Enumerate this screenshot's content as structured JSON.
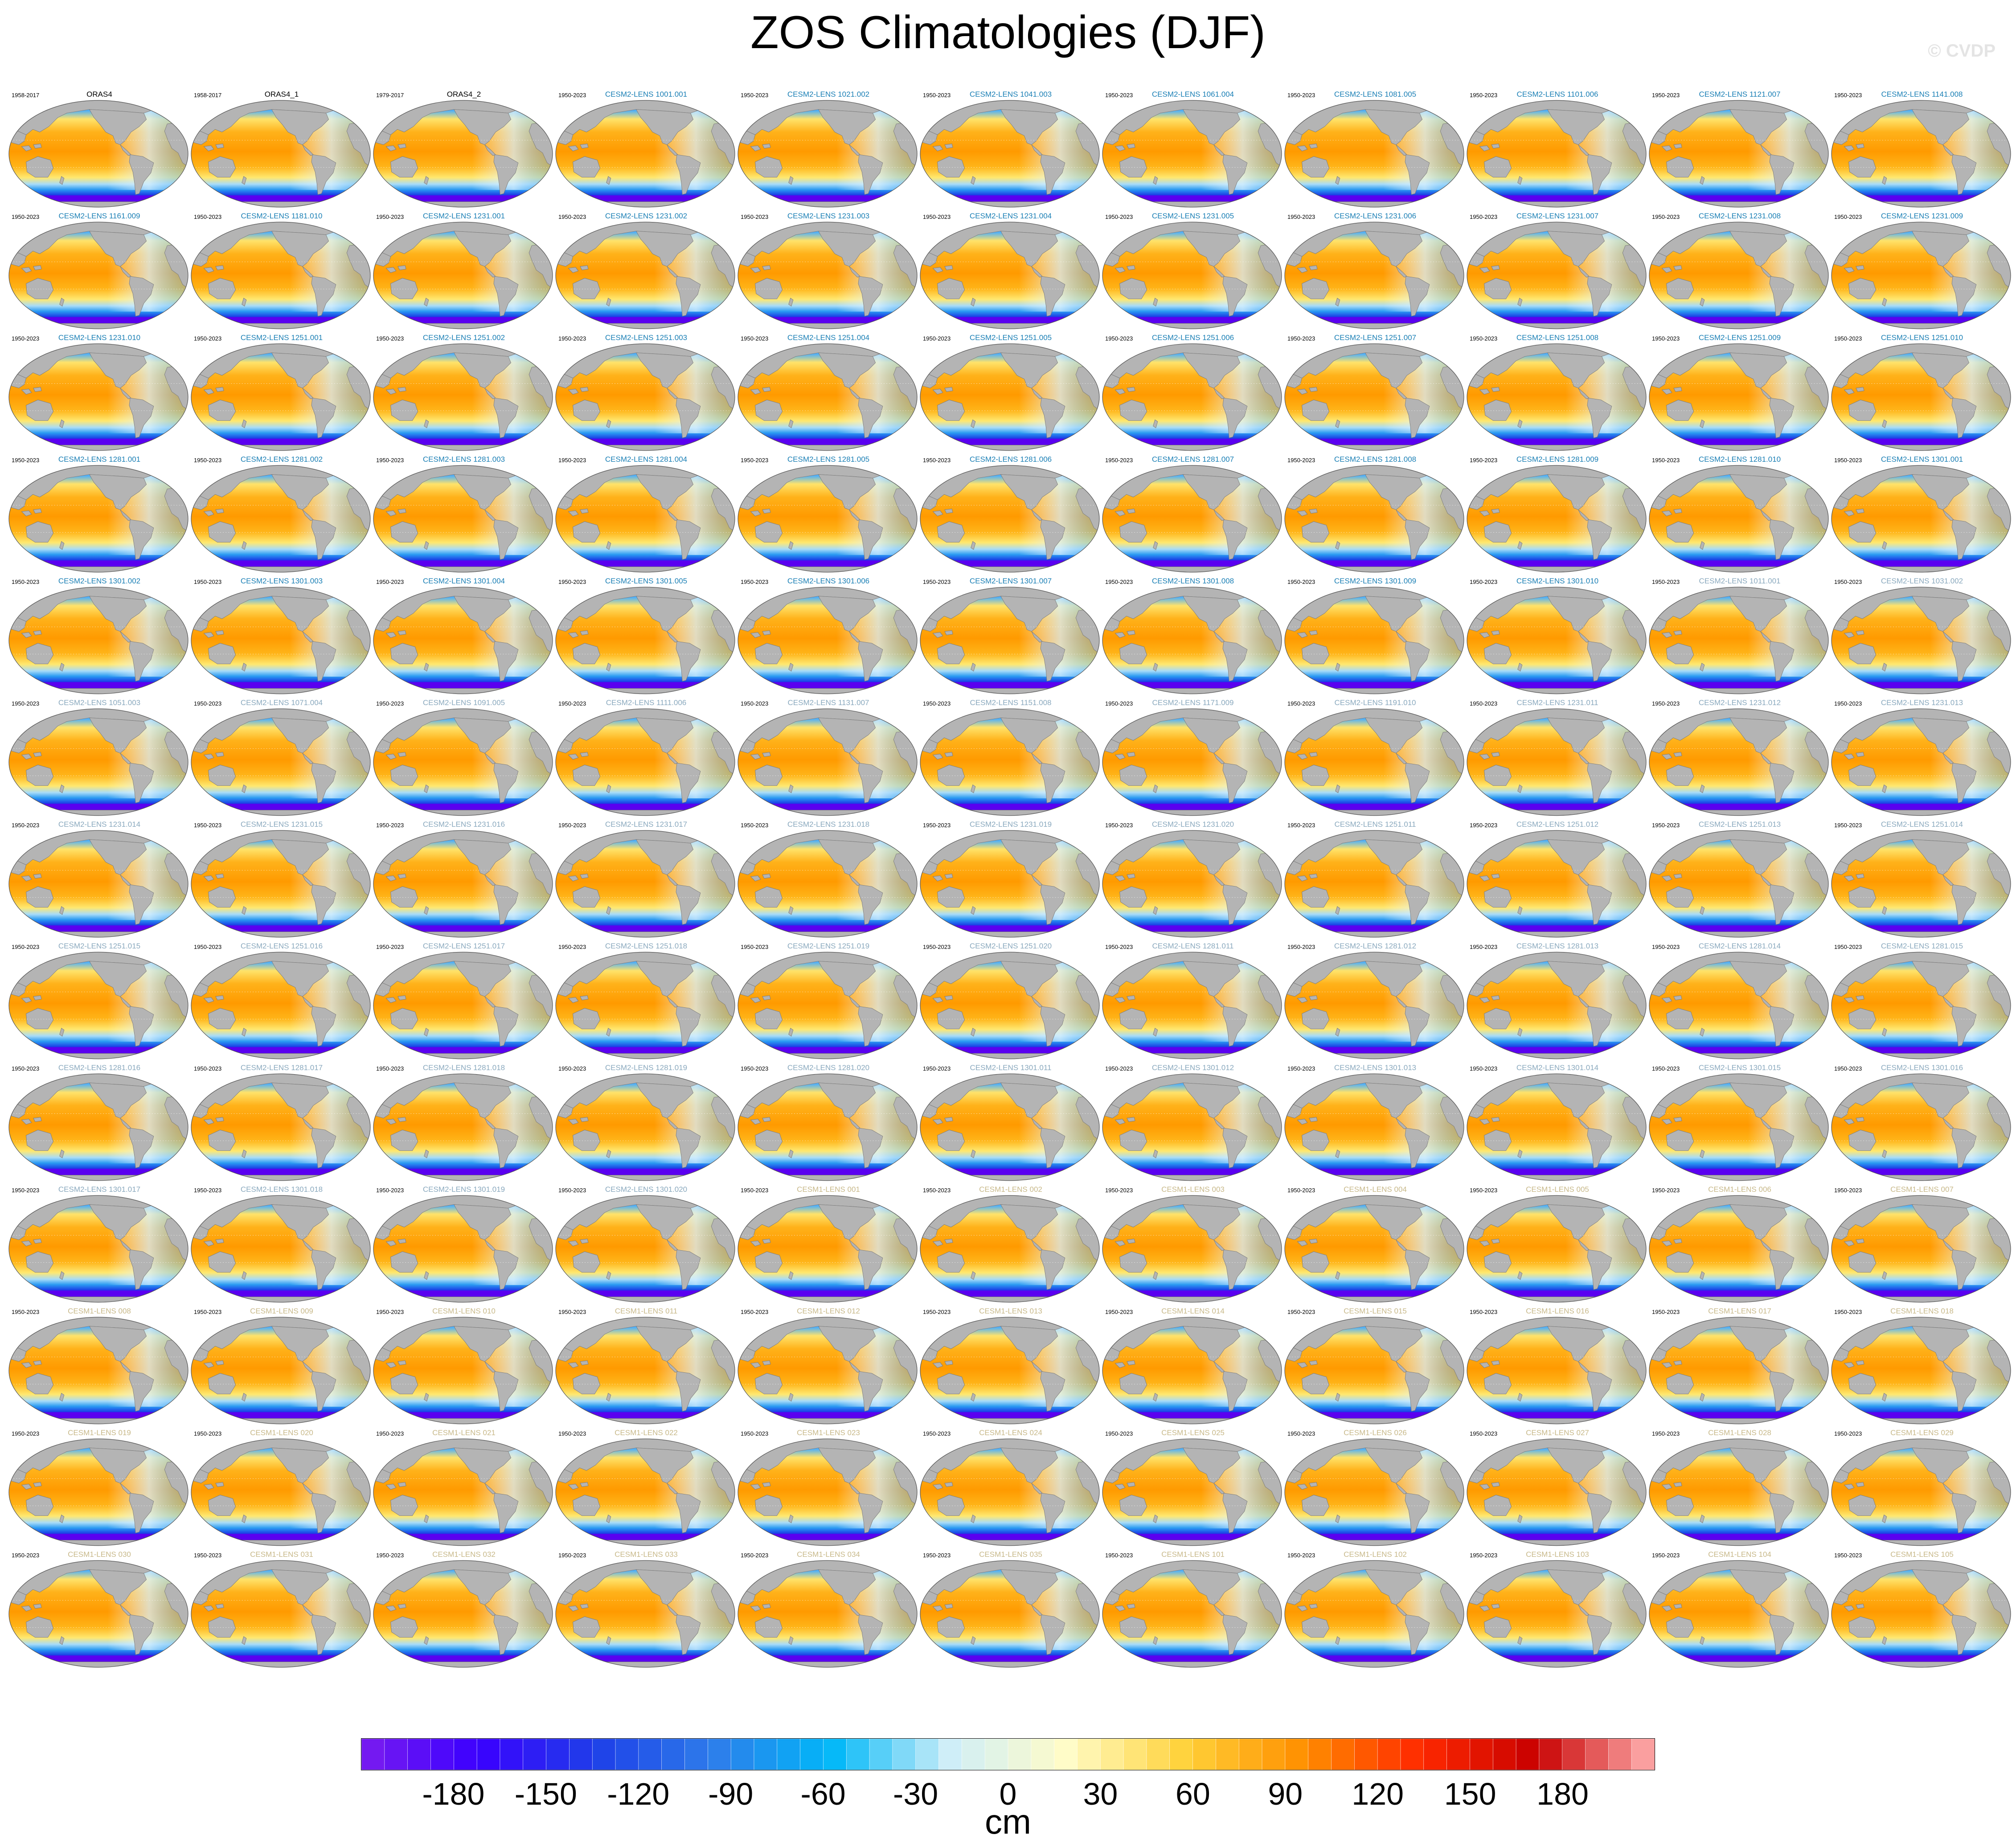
{
  "title": "ZOS Climatologies (DJF)",
  "watermark": "© CVDP",
  "grid": {
    "columns": 11,
    "rows": 13
  },
  "title_colors": {
    "obs": "#000000",
    "cesm2_a": "#1a7fb5",
    "cesm2_b": "#8aa9be",
    "cesm1": "#c8b98a"
  },
  "map_colors": {
    "land": "#b4b4b4",
    "ocean_warm": "#ffa500",
    "ocean_cool": "#4aaefc",
    "southern_ocean": "#5a00f0"
  },
  "panels": [
    {
      "years": "1958-2017",
      "title": "ORAS4",
      "style": "obs"
    },
    {
      "years": "1958-2017",
      "title": "ORAS4_1",
      "style": "obs"
    },
    {
      "years": "1979-2017",
      "title": "ORAS4_2",
      "style": "obs"
    },
    {
      "years": "1950-2023",
      "title": "CESM2-LENS 1001.001",
      "style": "cesm2_a"
    },
    {
      "years": "1950-2023",
      "title": "CESM2-LENS 1021.002",
      "style": "cesm2_a"
    },
    {
      "years": "1950-2023",
      "title": "CESM2-LENS 1041.003",
      "style": "cesm2_a"
    },
    {
      "years": "1950-2023",
      "title": "CESM2-LENS 1061.004",
      "style": "cesm2_a"
    },
    {
      "years": "1950-2023",
      "title": "CESM2-LENS 1081.005",
      "style": "cesm2_a"
    },
    {
      "years": "1950-2023",
      "title": "CESM2-LENS 1101.006",
      "style": "cesm2_a"
    },
    {
      "years": "1950-2023",
      "title": "CESM2-LENS 1121.007",
      "style": "cesm2_a"
    },
    {
      "years": "1950-2023",
      "title": "CESM2-LENS 1141.008",
      "style": "cesm2_a"
    },
    {
      "years": "1950-2023",
      "title": "CESM2-LENS 1161.009",
      "style": "cesm2_a"
    },
    {
      "years": "1950-2023",
      "title": "CESM2-LENS 1181.010",
      "style": "cesm2_a"
    },
    {
      "years": "1950-2023",
      "title": "CESM2-LENS 1231.001",
      "style": "cesm2_a"
    },
    {
      "years": "1950-2023",
      "title": "CESM2-LENS 1231.002",
      "style": "cesm2_a"
    },
    {
      "years": "1950-2023",
      "title": "CESM2-LENS 1231.003",
      "style": "cesm2_a"
    },
    {
      "years": "1950-2023",
      "title": "CESM2-LENS 1231.004",
      "style": "cesm2_a"
    },
    {
      "years": "1950-2023",
      "title": "CESM2-LENS 1231.005",
      "style": "cesm2_a"
    },
    {
      "years": "1950-2023",
      "title": "CESM2-LENS 1231.006",
      "style": "cesm2_a"
    },
    {
      "years": "1950-2023",
      "title": "CESM2-LENS 1231.007",
      "style": "cesm2_a"
    },
    {
      "years": "1950-2023",
      "title": "CESM2-LENS 1231.008",
      "style": "cesm2_a"
    },
    {
      "years": "1950-2023",
      "title": "CESM2-LENS 1231.009",
      "style": "cesm2_a"
    },
    {
      "years": "1950-2023",
      "title": "CESM2-LENS 1231.010",
      "style": "cesm2_a"
    },
    {
      "years": "1950-2023",
      "title": "CESM2-LENS 1251.001",
      "style": "cesm2_a"
    },
    {
      "years": "1950-2023",
      "title": "CESM2-LENS 1251.002",
      "style": "cesm2_a"
    },
    {
      "years": "1950-2023",
      "title": "CESM2-LENS 1251.003",
      "style": "cesm2_a"
    },
    {
      "years": "1950-2023",
      "title": "CESM2-LENS 1251.004",
      "style": "cesm2_a"
    },
    {
      "years": "1950-2023",
      "title": "CESM2-LENS 1251.005",
      "style": "cesm2_a"
    },
    {
      "years": "1950-2023",
      "title": "CESM2-LENS 1251.006",
      "style": "cesm2_a"
    },
    {
      "years": "1950-2023",
      "title": "CESM2-LENS 1251.007",
      "style": "cesm2_a"
    },
    {
      "years": "1950-2023",
      "title": "CESM2-LENS 1251.008",
      "style": "cesm2_a"
    },
    {
      "years": "1950-2023",
      "title": "CESM2-LENS 1251.009",
      "style": "cesm2_a"
    },
    {
      "years": "1950-2023",
      "title": "CESM2-LENS 1251.010",
      "style": "cesm2_a"
    },
    {
      "years": "1950-2023",
      "title": "CESM2-LENS 1281.001",
      "style": "cesm2_a"
    },
    {
      "years": "1950-2023",
      "title": "CESM2-LENS 1281.002",
      "style": "cesm2_a"
    },
    {
      "years": "1950-2023",
      "title": "CESM2-LENS 1281.003",
      "style": "cesm2_a"
    },
    {
      "years": "1950-2023",
      "title": "CESM2-LENS 1281.004",
      "style": "cesm2_a"
    },
    {
      "years": "1950-2023",
      "title": "CESM2-LENS 1281.005",
      "style": "cesm2_a"
    },
    {
      "years": "1950-2023",
      "title": "CESM2-LENS 1281.006",
      "style": "cesm2_a"
    },
    {
      "years": "1950-2023",
      "title": "CESM2-LENS 1281.007",
      "style": "cesm2_a"
    },
    {
      "years": "1950-2023",
      "title": "CESM2-LENS 1281.008",
      "style": "cesm2_a"
    },
    {
      "years": "1950-2023",
      "title": "CESM2-LENS 1281.009",
      "style": "cesm2_a"
    },
    {
      "years": "1950-2023",
      "title": "CESM2-LENS 1281.010",
      "style": "cesm2_a"
    },
    {
      "years": "1950-2023",
      "title": "CESM2-LENS 1301.001",
      "style": "cesm2_a"
    },
    {
      "years": "1950-2023",
      "title": "CESM2-LENS 1301.002",
      "style": "cesm2_a"
    },
    {
      "years": "1950-2023",
      "title": "CESM2-LENS 1301.003",
      "style": "cesm2_a"
    },
    {
      "years": "1950-2023",
      "title": "CESM2-LENS 1301.004",
      "style": "cesm2_a"
    },
    {
      "years": "1950-2023",
      "title": "CESM2-LENS 1301.005",
      "style": "cesm2_a"
    },
    {
      "years": "1950-2023",
      "title": "CESM2-LENS 1301.006",
      "style": "cesm2_a"
    },
    {
      "years": "1950-2023",
      "title": "CESM2-LENS 1301.007",
      "style": "cesm2_a"
    },
    {
      "years": "1950-2023",
      "title": "CESM2-LENS 1301.008",
      "style": "cesm2_a"
    },
    {
      "years": "1950-2023",
      "title": "CESM2-LENS 1301.009",
      "style": "cesm2_a"
    },
    {
      "years": "1950-2023",
      "title": "CESM2-LENS 1301.010",
      "style": "cesm2_a"
    },
    {
      "years": "1950-2023",
      "title": "CESM2-LENS 1011.001",
      "style": "cesm2_b"
    },
    {
      "years": "1950-2023",
      "title": "CESM2-LENS 1031.002",
      "style": "cesm2_b"
    },
    {
      "years": "1950-2023",
      "title": "CESM2-LENS 1051.003",
      "style": "cesm2_b"
    },
    {
      "years": "1950-2023",
      "title": "CESM2-LENS 1071.004",
      "style": "cesm2_b"
    },
    {
      "years": "1950-2023",
      "title": "CESM2-LENS 1091.005",
      "style": "cesm2_b"
    },
    {
      "years": "1950-2023",
      "title": "CESM2-LENS 1111.006",
      "style": "cesm2_b"
    },
    {
      "years": "1950-2023",
      "title": "CESM2-LENS 1131.007",
      "style": "cesm2_b"
    },
    {
      "years": "1950-2023",
      "title": "CESM2-LENS 1151.008",
      "style": "cesm2_b"
    },
    {
      "years": "1950-2023",
      "title": "CESM2-LENS 1171.009",
      "style": "cesm2_b"
    },
    {
      "years": "1950-2023",
      "title": "CESM2-LENS 1191.010",
      "style": "cesm2_b"
    },
    {
      "years": "1950-2023",
      "title": "CESM2-LENS 1231.011",
      "style": "cesm2_b"
    },
    {
      "years": "1950-2023",
      "title": "CESM2-LENS 1231.012",
      "style": "cesm2_b"
    },
    {
      "years": "1950-2023",
      "title": "CESM2-LENS 1231.013",
      "style": "cesm2_b"
    },
    {
      "years": "1950-2023",
      "title": "CESM2-LENS 1231.014",
      "style": "cesm2_b"
    },
    {
      "years": "1950-2023",
      "title": "CESM2-LENS 1231.015",
      "style": "cesm2_b"
    },
    {
      "years": "1950-2023",
      "title": "CESM2-LENS 1231.016",
      "style": "cesm2_b"
    },
    {
      "years": "1950-2023",
      "title": "CESM2-LENS 1231.017",
      "style": "cesm2_b"
    },
    {
      "years": "1950-2023",
      "title": "CESM2-LENS 1231.018",
      "style": "cesm2_b"
    },
    {
      "years": "1950-2023",
      "title": "CESM2-LENS 1231.019",
      "style": "cesm2_b"
    },
    {
      "years": "1950-2023",
      "title": "CESM2-LENS 1231.020",
      "style": "cesm2_b"
    },
    {
      "years": "1950-2023",
      "title": "CESM2-LENS 1251.011",
      "style": "cesm2_b"
    },
    {
      "years": "1950-2023",
      "title": "CESM2-LENS 1251.012",
      "style": "cesm2_b"
    },
    {
      "years": "1950-2023",
      "title": "CESM2-LENS 1251.013",
      "style": "cesm2_b"
    },
    {
      "years": "1950-2023",
      "title": "CESM2-LENS 1251.014",
      "style": "cesm2_b"
    },
    {
      "years": "1950-2023",
      "title": "CESM2-LENS 1251.015",
      "style": "cesm2_b"
    },
    {
      "years": "1950-2023",
      "title": "CESM2-LENS 1251.016",
      "style": "cesm2_b"
    },
    {
      "years": "1950-2023",
      "title": "CESM2-LENS 1251.017",
      "style": "cesm2_b"
    },
    {
      "years": "1950-2023",
      "title": "CESM2-LENS 1251.018",
      "style": "cesm2_b"
    },
    {
      "years": "1950-2023",
      "title": "CESM2-LENS 1251.019",
      "style": "cesm2_b"
    },
    {
      "years": "1950-2023",
      "title": "CESM2-LENS 1251.020",
      "style": "cesm2_b"
    },
    {
      "years": "1950-2023",
      "title": "CESM2-LENS 1281.011",
      "style": "cesm2_b"
    },
    {
      "years": "1950-2023",
      "title": "CESM2-LENS 1281.012",
      "style": "cesm2_b"
    },
    {
      "years": "1950-2023",
      "title": "CESM2-LENS 1281.013",
      "style": "cesm2_b"
    },
    {
      "years": "1950-2023",
      "title": "CESM2-LENS 1281.014",
      "style": "cesm2_b"
    },
    {
      "years": "1950-2023",
      "title": "CESM2-LENS 1281.015",
      "style": "cesm2_b"
    },
    {
      "years": "1950-2023",
      "title": "CESM2-LENS 1281.016",
      "style": "cesm2_b"
    },
    {
      "years": "1950-2023",
      "title": "CESM2-LENS 1281.017",
      "style": "cesm2_b"
    },
    {
      "years": "1950-2023",
      "title": "CESM2-LENS 1281.018",
      "style": "cesm2_b"
    },
    {
      "years": "1950-2023",
      "title": "CESM2-LENS 1281.019",
      "style": "cesm2_b"
    },
    {
      "years": "1950-2023",
      "title": "CESM2-LENS 1281.020",
      "style": "cesm2_b"
    },
    {
      "years": "1950-2023",
      "title": "CESM2-LENS 1301.011",
      "style": "cesm2_b"
    },
    {
      "years": "1950-2023",
      "title": "CESM2-LENS 1301.012",
      "style": "cesm2_b"
    },
    {
      "years": "1950-2023",
      "title": "CESM2-LENS 1301.013",
      "style": "cesm2_b"
    },
    {
      "years": "1950-2023",
      "title": "CESM2-LENS 1301.014",
      "style": "cesm2_b"
    },
    {
      "years": "1950-2023",
      "title": "CESM2-LENS 1301.015",
      "style": "cesm2_b"
    },
    {
      "years": "1950-2023",
      "title": "CESM2-LENS 1301.016",
      "style": "cesm2_b"
    },
    {
      "years": "1950-2023",
      "title": "CESM2-LENS 1301.017",
      "style": "cesm2_b"
    },
    {
      "years": "1950-2023",
      "title": "CESM2-LENS 1301.018",
      "style": "cesm2_b"
    },
    {
      "years": "1950-2023",
      "title": "CESM2-LENS 1301.019",
      "style": "cesm2_b"
    },
    {
      "years": "1950-2023",
      "title": "CESM2-LENS 1301.020",
      "style": "cesm2_b"
    },
    {
      "years": "1950-2023",
      "title": "CESM1-LENS 001",
      "style": "cesm1"
    },
    {
      "years": "1950-2023",
      "title": "CESM1-LENS 002",
      "style": "cesm1"
    },
    {
      "years": "1950-2023",
      "title": "CESM1-LENS 003",
      "style": "cesm1"
    },
    {
      "years": "1950-2023",
      "title": "CESM1-LENS 004",
      "style": "cesm1"
    },
    {
      "years": "1950-2023",
      "title": "CESM1-LENS 005",
      "style": "cesm1"
    },
    {
      "years": "1950-2023",
      "title": "CESM1-LENS 006",
      "style": "cesm1"
    },
    {
      "years": "1950-2023",
      "title": "CESM1-LENS 007",
      "style": "cesm1"
    },
    {
      "years": "1950-2023",
      "title": "CESM1-LENS 008",
      "style": "cesm1"
    },
    {
      "years": "1950-2023",
      "title": "CESM1-LENS 009",
      "style": "cesm1"
    },
    {
      "years": "1950-2023",
      "title": "CESM1-LENS 010",
      "style": "cesm1"
    },
    {
      "years": "1950-2023",
      "title": "CESM1-LENS 011",
      "style": "cesm1"
    },
    {
      "years": "1950-2023",
      "title": "CESM1-LENS 012",
      "style": "cesm1"
    },
    {
      "years": "1950-2023",
      "title": "CESM1-LENS 013",
      "style": "cesm1"
    },
    {
      "years": "1950-2023",
      "title": "CESM1-LENS 014",
      "style": "cesm1"
    },
    {
      "years": "1950-2023",
      "title": "CESM1-LENS 015",
      "style": "cesm1"
    },
    {
      "years": "1950-2023",
      "title": "CESM1-LENS 016",
      "style": "cesm1"
    },
    {
      "years": "1950-2023",
      "title": "CESM1-LENS 017",
      "style": "cesm1"
    },
    {
      "years": "1950-2023",
      "title": "CESM1-LENS 018",
      "style": "cesm1"
    },
    {
      "years": "1950-2023",
      "title": "CESM1-LENS 019",
      "style": "cesm1"
    },
    {
      "years": "1950-2023",
      "title": "CESM1-LENS 020",
      "style": "cesm1"
    },
    {
      "years": "1950-2023",
      "title": "CESM1-LENS 021",
      "style": "cesm1"
    },
    {
      "years": "1950-2023",
      "title": "CESM1-LENS 022",
      "style": "cesm1"
    },
    {
      "years": "1950-2023",
      "title": "CESM1-LENS 023",
      "style": "cesm1"
    },
    {
      "years": "1950-2023",
      "title": "CESM1-LENS 024",
      "style": "cesm1"
    },
    {
      "years": "1950-2023",
      "title": "CESM1-LENS 025",
      "style": "cesm1"
    },
    {
      "years": "1950-2023",
      "title": "CESM1-LENS 026",
      "style": "cesm1"
    },
    {
      "years": "1950-2023",
      "title": "CESM1-LENS 027",
      "style": "cesm1"
    },
    {
      "years": "1950-2023",
      "title": "CESM1-LENS 028",
      "style": "cesm1"
    },
    {
      "years": "1950-2023",
      "title": "CESM1-LENS 029",
      "style": "cesm1"
    },
    {
      "years": "1950-2023",
      "title": "CESM1-LENS 030",
      "style": "cesm1"
    },
    {
      "years": "1950-2023",
      "title": "CESM1-LENS 031",
      "style": "cesm1"
    },
    {
      "years": "1950-2023",
      "title": "CESM1-LENS 032",
      "style": "cesm1"
    },
    {
      "years": "1950-2023",
      "title": "CESM1-LENS 033",
      "style": "cesm1"
    },
    {
      "years": "1950-2023",
      "title": "CESM1-LENS 034",
      "style": "cesm1"
    },
    {
      "years": "1950-2023",
      "title": "CESM1-LENS 035",
      "style": "cesm1"
    },
    {
      "years": "1950-2023",
      "title": "CESM1-LENS 101",
      "style": "cesm1"
    },
    {
      "years": "1950-2023",
      "title": "CESM1-LENS 102",
      "style": "cesm1"
    },
    {
      "years": "1950-2023",
      "title": "CESM1-LENS 103",
      "style": "cesm1"
    },
    {
      "years": "1950-2023",
      "title": "CESM1-LENS 104",
      "style": "cesm1"
    },
    {
      "years": "1950-2023",
      "title": "CESM1-LENS 105",
      "style": "cesm1"
    }
  ],
  "colorbar": {
    "units": "cm",
    "min": -210,
    "max": 210,
    "step": 7.5,
    "tick_labels": [
      "-180",
      "-150",
      "-120",
      "-90",
      "-60",
      "-30",
      "0",
      "30",
      "60",
      "90",
      "120",
      "150",
      "180"
    ],
    "tick_values": [
      -180,
      -150,
      -120,
      -90,
      -60,
      -30,
      0,
      30,
      60,
      90,
      120,
      150,
      180
    ],
    "color_stops": [
      "#7a1cf0",
      "#3a00ff",
      "#1e40e8",
      "#2e7dea",
      "#00b8f8",
      "#cfeef8",
      "#fffcc8",
      "#ffd23a",
      "#ff9000",
      "#ff2a00",
      "#c80000",
      "#ffb0b0"
    ]
  }
}
